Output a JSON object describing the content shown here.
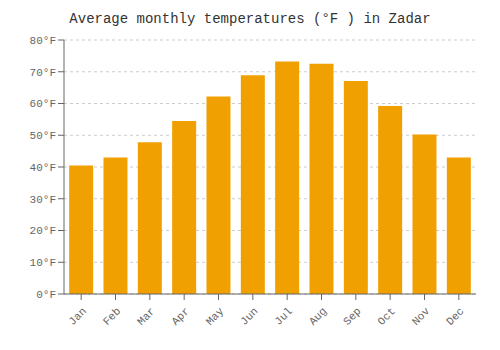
{
  "chart_data": {
    "type": "bar",
    "title": "Average monthly temperatures (°F ) in Zadar",
    "categories": [
      "Jan",
      "Feb",
      "Mar",
      "Apr",
      "May",
      "Jun",
      "Jul",
      "Aug",
      "Sep",
      "Oct",
      "Nov",
      "Dec"
    ],
    "values": [
      40.5,
      43.0,
      47.8,
      54.5,
      62.2,
      68.9,
      73.2,
      72.5,
      67.1,
      59.2,
      50.2,
      43.0
    ],
    "color": "#F0A000",
    "ylim": [
      0,
      80
    ],
    "yticks": [
      {
        "value": 0,
        "label": "0°F"
      },
      {
        "value": 10,
        "label": "10°F"
      },
      {
        "value": 20,
        "label": "20°F"
      },
      {
        "value": 30,
        "label": "30°F"
      },
      {
        "value": 40,
        "label": "40°F"
      },
      {
        "value": 50,
        "label": "50°F"
      },
      {
        "value": 60,
        "label": "60°F"
      },
      {
        "value": 70,
        "label": "70°F"
      },
      {
        "value": 80,
        "label": "80°F"
      }
    ],
    "grid": true
  }
}
